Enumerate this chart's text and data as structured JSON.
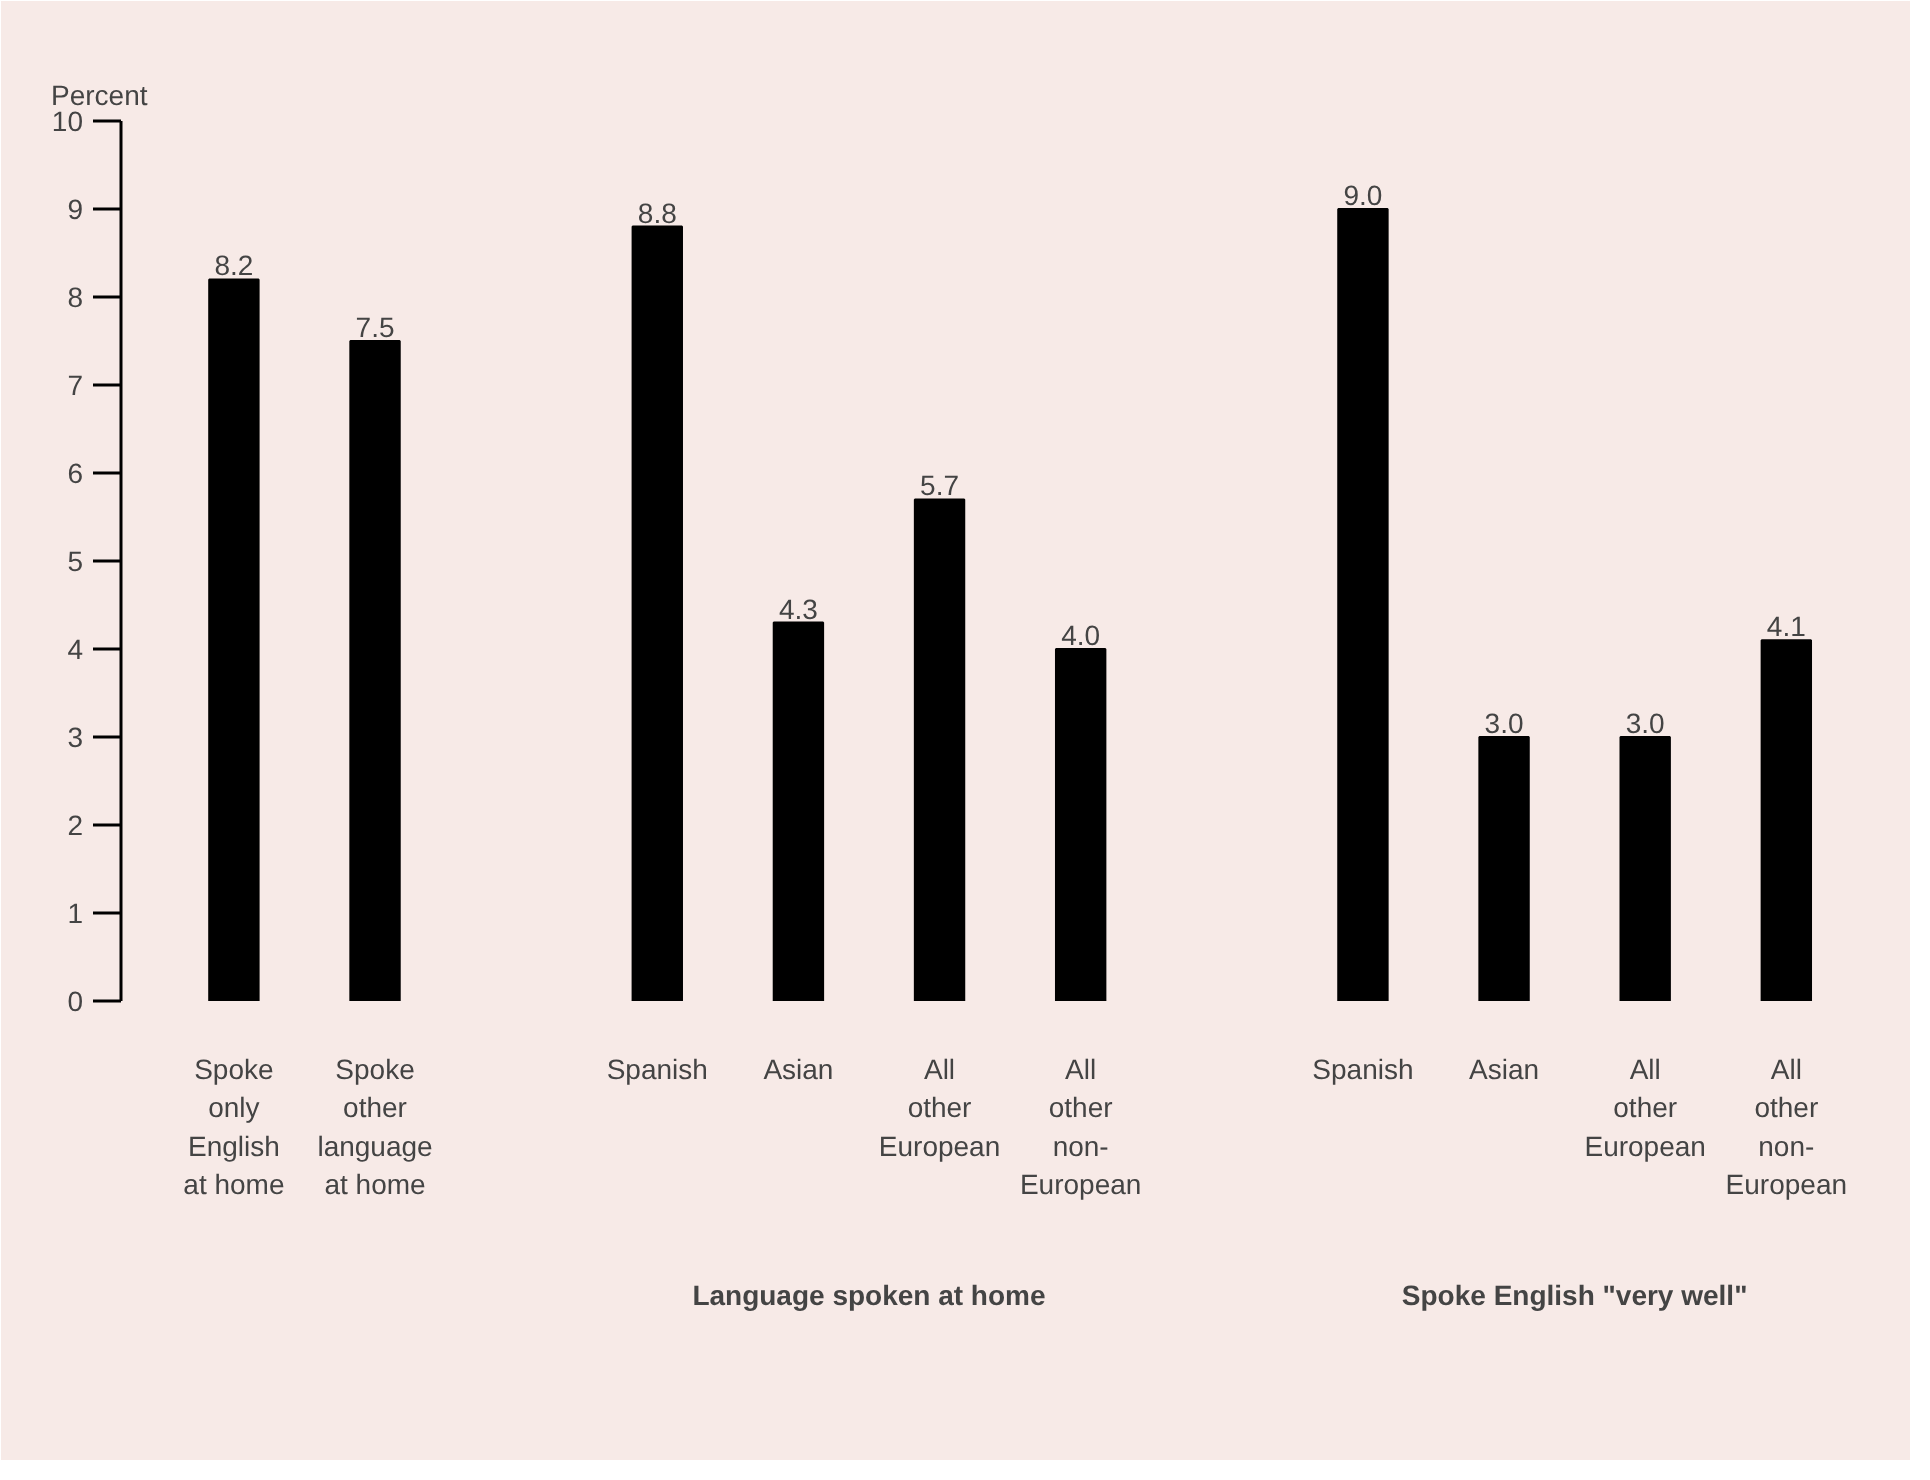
{
  "chart_data": {
    "type": "bar",
    "ylabel": "Percent",
    "categories": [
      "Spoke\nonly\nEnglish\nat home",
      "Spoke\nother\nlanguage\nat home",
      null,
      "Spanish",
      "Asian",
      "All\nother\nEuropean",
      "All\nother\nnon-\nEuropean",
      null,
      "Spanish",
      "Asian",
      "All\nother\nEuropean",
      "All\nother\nnon-\nEuropean"
    ],
    "values": [
      8.2,
      7.5,
      null,
      8.8,
      4.3,
      5.7,
      4.0,
      null,
      9.0,
      3.0,
      3.0,
      4.1
    ],
    "color": "#000000",
    "ylim": [
      0,
      10
    ],
    "yticks": [
      0,
      1,
      2,
      3,
      4,
      5,
      6,
      7,
      8,
      9,
      10
    ],
    "grid": false,
    "value_labels": [
      "8.2",
      "7.5",
      null,
      "8.8",
      "4.3",
      "5.7",
      "4.0",
      null,
      "9.0",
      "3.0",
      "3.0",
      "4.1"
    ],
    "annotations": [
      "Language spoken at home",
      "Spoke English \"very well\""
    ]
  }
}
